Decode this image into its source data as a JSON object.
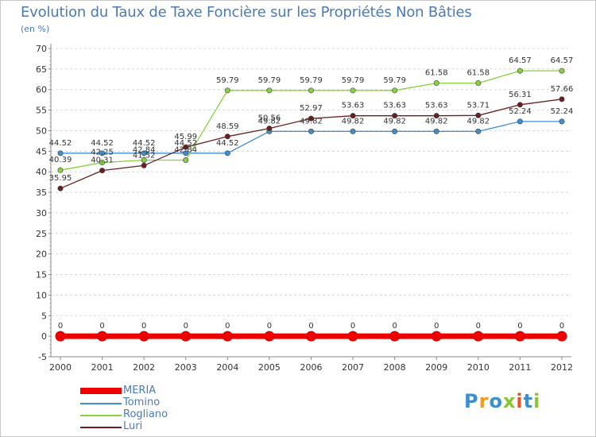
{
  "title": "Evolution du Taux de Taxe Foncière sur les Propriétés Non Bâties",
  "unit": "(en %)",
  "logo": "Proxiti",
  "chart_data": {
    "type": "line",
    "x": [
      "2000",
      "2001",
      "2002",
      "2003",
      "2004",
      "2005",
      "2006",
      "2007",
      "2008",
      "2009",
      "2010",
      "2011",
      "2012"
    ],
    "ylim": [
      -5,
      70
    ],
    "yticks": [
      -5,
      0,
      5,
      10,
      15,
      20,
      25,
      30,
      35,
      40,
      45,
      50,
      55,
      60,
      65,
      70
    ],
    "grid": "horizontal dashed",
    "legend_position": "bottom-left",
    "series": [
      {
        "name": "MERIA",
        "color": "#ee0000",
        "values": [
          0,
          0,
          0,
          0,
          0,
          0,
          0,
          0,
          0,
          0,
          0,
          0,
          0
        ],
        "labels": [
          "0",
          "0",
          "0",
          "0",
          "0",
          "0",
          "0",
          "0",
          "0",
          "0",
          "0",
          "0",
          "0"
        ]
      },
      {
        "name": "Tomino",
        "color": "#3d8ecf",
        "values": [
          44.52,
          44.52,
          44.52,
          44.52,
          44.52,
          49.82,
          49.82,
          49.82,
          49.82,
          49.82,
          49.82,
          52.24,
          52.24
        ],
        "labels": [
          "44.52",
          "44.52",
          "44.52",
          "44.52",
          "44.52",
          "49.82",
          "49.82",
          "49.82",
          "49.82",
          "49.82",
          "49.82",
          "52.24",
          "52.24"
        ]
      },
      {
        "name": "Rogliano",
        "color": "#88d040",
        "values": [
          40.39,
          42.25,
          42.84,
          42.84,
          59.79,
          59.79,
          59.79,
          59.79,
          59.79,
          61.58,
          61.58,
          64.57,
          64.57
        ],
        "labels": [
          "40.39",
          "42.25",
          "42.84",
          "42.84",
          "59.79",
          "59.79",
          "59.79",
          "59.79",
          "59.79",
          "61.58",
          "61.58",
          "64.57",
          "64.57"
        ]
      },
      {
        "name": "Luri",
        "color": "#6a1e1e",
        "values": [
          35.95,
          40.31,
          41.52,
          45.99,
          48.59,
          50.56,
          52.97,
          53.63,
          53.63,
          53.63,
          53.71,
          56.31,
          57.66
        ],
        "labels": [
          "35.95",
          "40.31",
          "41.52",
          "45.99",
          "48.59",
          "50.56",
          "52.97",
          "53.63",
          "53.63",
          "53.63",
          "53.71",
          "56.31",
          "57.66"
        ]
      }
    ]
  }
}
